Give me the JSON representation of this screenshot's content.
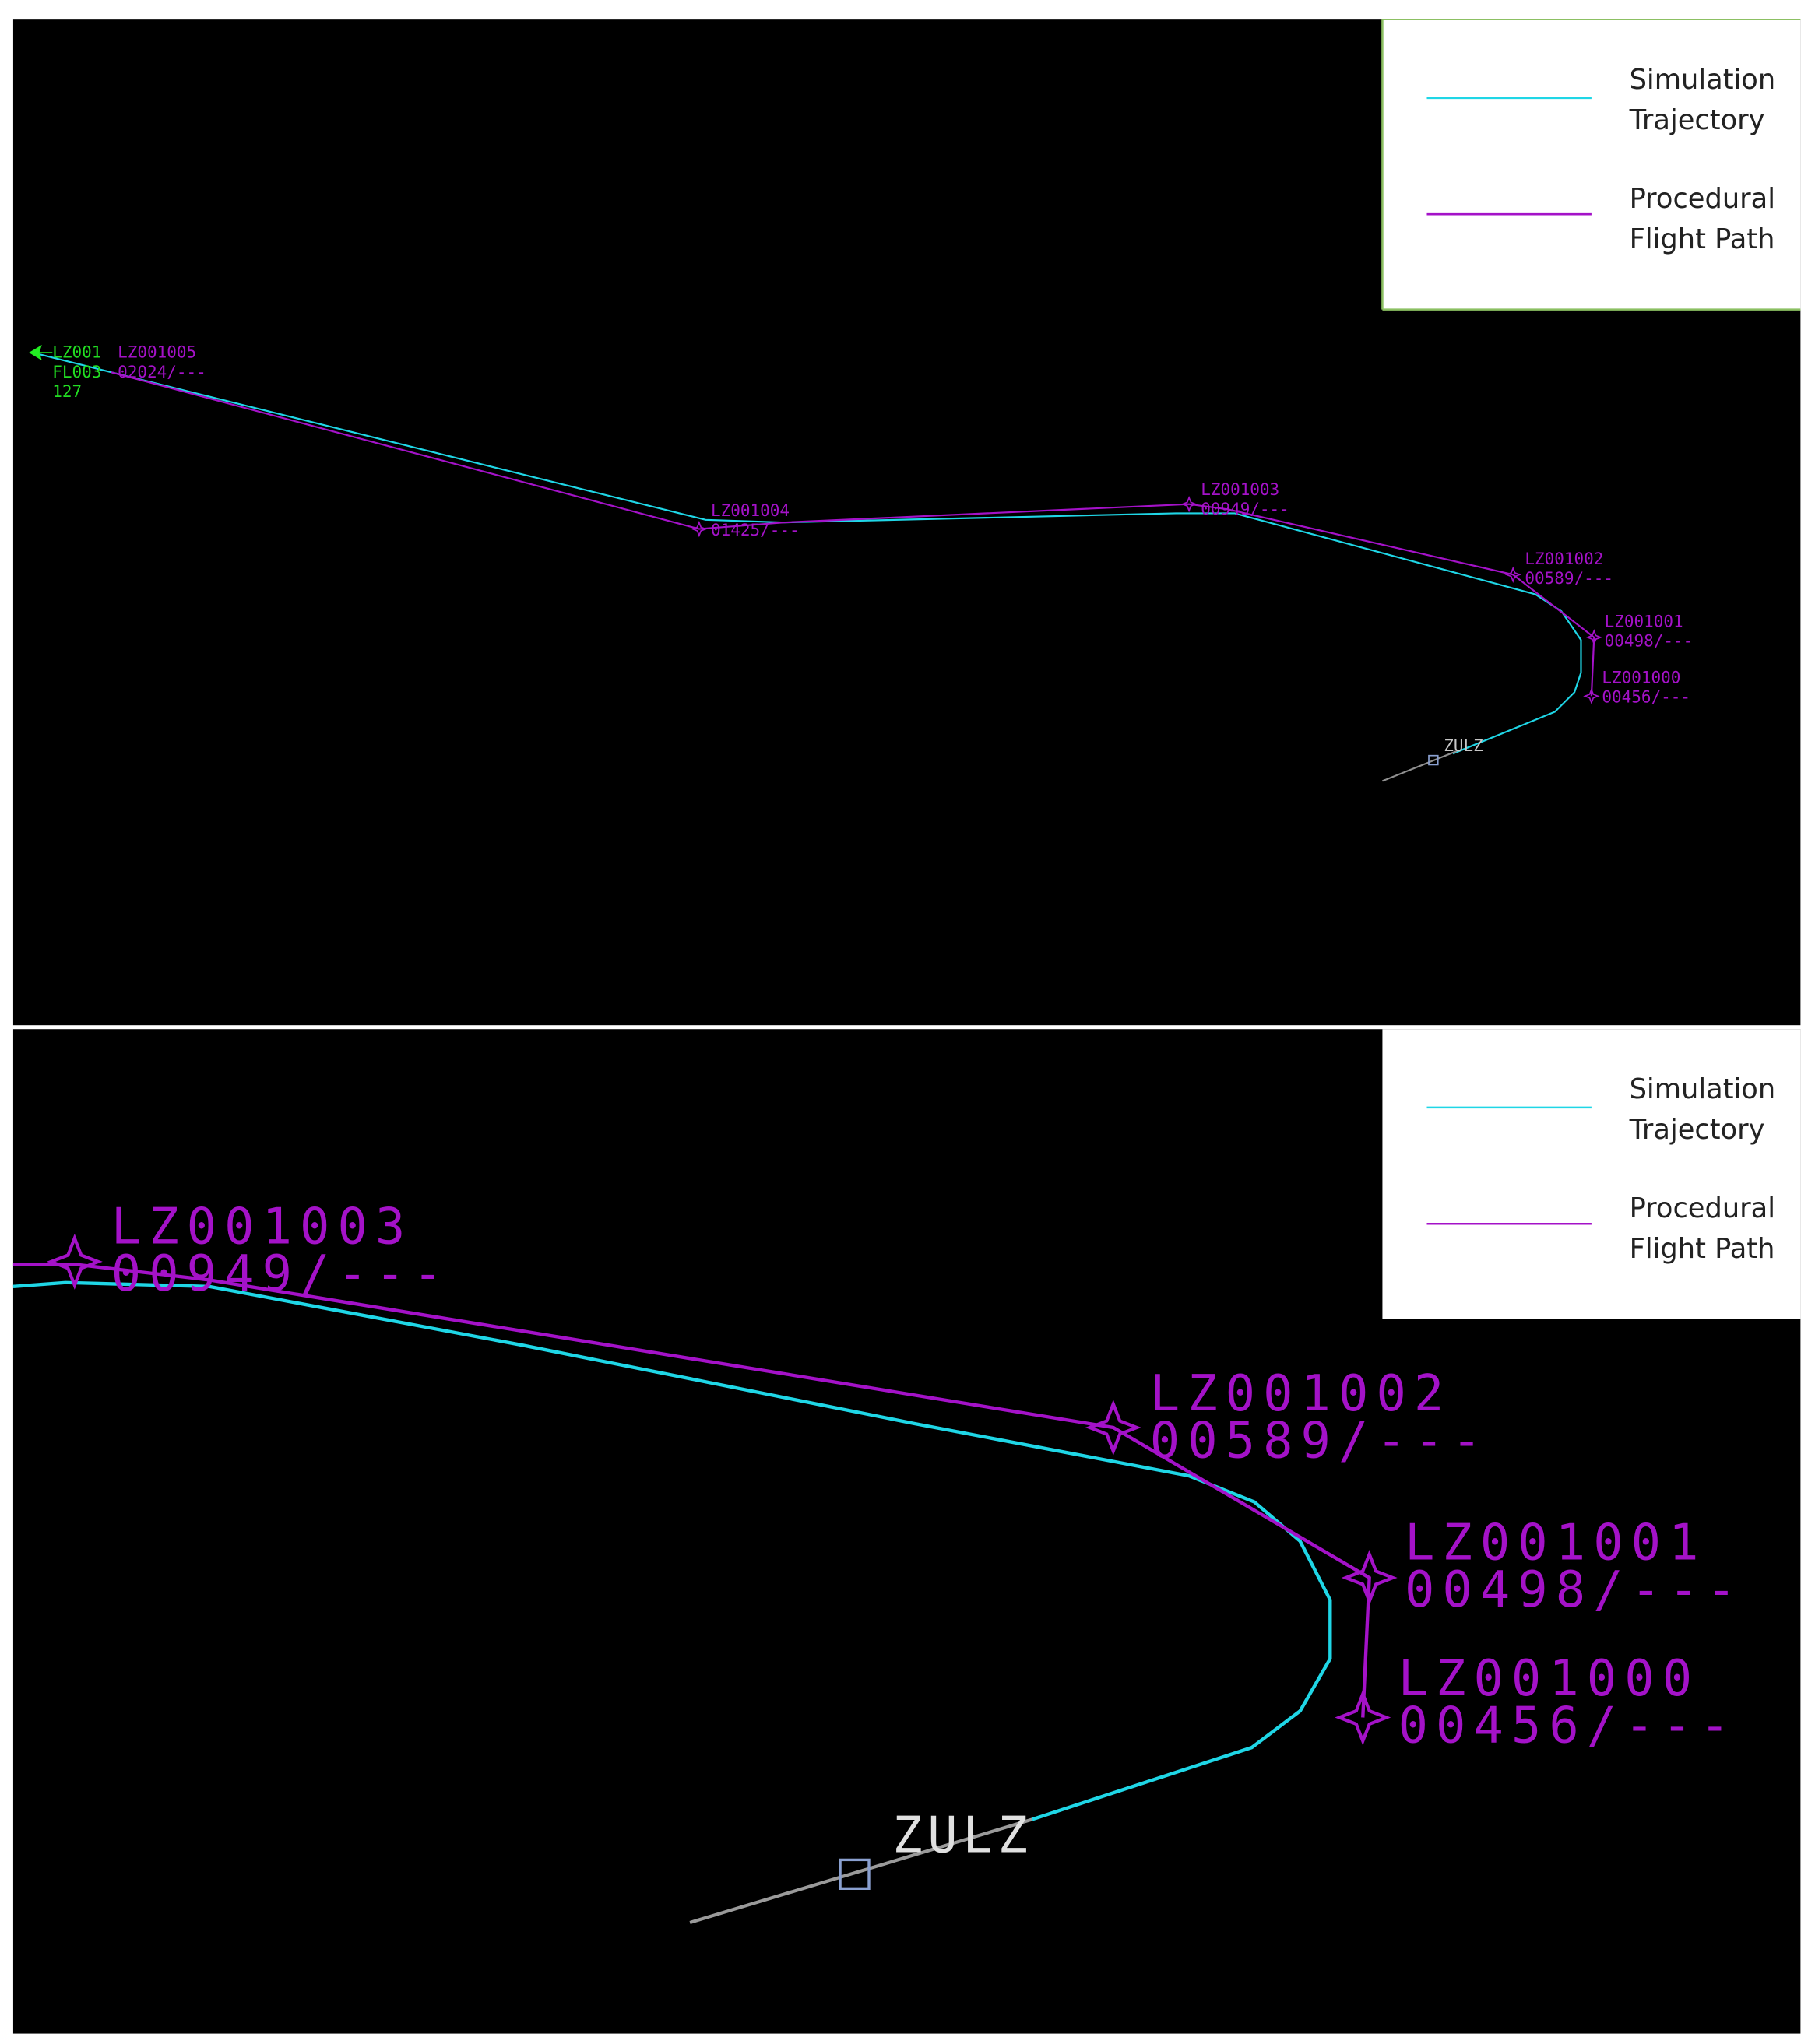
{
  "legend": {
    "items": [
      {
        "label_lines": [
          "Simulation",
          "Trajectory"
        ],
        "color": "#1fd6e6"
      },
      {
        "label_lines": [
          "Procedural",
          "Flight Path"
        ],
        "color": "#a412c8"
      }
    ]
  },
  "overview": {
    "aircraft": {
      "callsign": "LZ001",
      "level": "FL003",
      "speed": "127"
    },
    "waypoints": [
      {
        "name": "LZ001005",
        "info": "02024/---"
      },
      {
        "name": "LZ001004",
        "info": "01425/---"
      },
      {
        "name": "LZ001003",
        "info": "00949/---"
      },
      {
        "name": "LZ001002",
        "info": "00589/---"
      },
      {
        "name": "LZ001001",
        "info": "00498/---"
      },
      {
        "name": "LZ001000",
        "info": "00456/---"
      }
    ],
    "fix": "ZULZ"
  },
  "zoom": {
    "waypoints": [
      {
        "name": "LZ001003",
        "info": "00949/---"
      },
      {
        "name": "LZ001002",
        "info": "00589/---"
      },
      {
        "name": "LZ001001",
        "info": "00498/---"
      },
      {
        "name": "LZ001000",
        "info": "00456/---"
      }
    ],
    "fix": "ZULZ"
  }
}
